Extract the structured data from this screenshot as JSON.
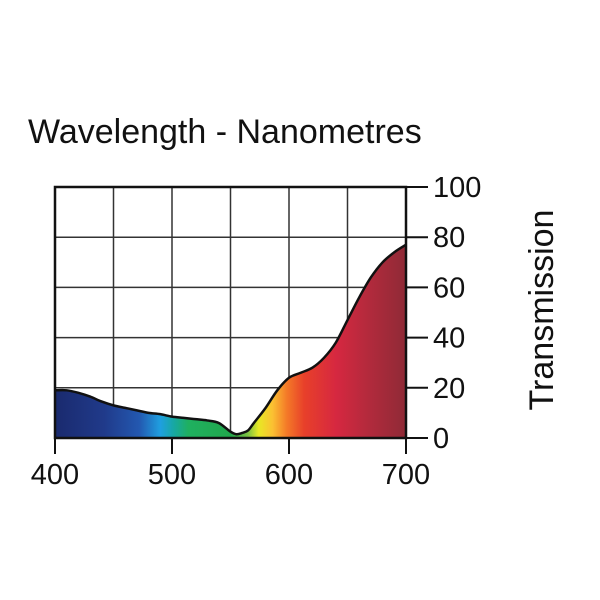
{
  "chart_data": {
    "type": "area",
    "title": "Wavelength - Nanometres",
    "xlabel": "",
    "ylabel": "Transmission",
    "xlim": [
      400,
      700
    ],
    "ylim": [
      0,
      100
    ],
    "x_ticks": [
      400,
      500,
      600,
      700
    ],
    "x_tick_labels": [
      "400",
      "500",
      "600",
      "700"
    ],
    "y_ticks": [
      0,
      20,
      40,
      60,
      80,
      100
    ],
    "y_tick_labels": [
      "0",
      "20",
      "40",
      "60",
      "80",
      "100"
    ],
    "y_axis_side": "right",
    "grid": true,
    "fill": "visible-spectrum-gradient",
    "series": [
      {
        "name": "Transmission",
        "x": [
          400,
          410,
          420,
          430,
          440,
          450,
          460,
          470,
          480,
          490,
          500,
          510,
          520,
          530,
          540,
          550,
          555,
          560,
          565,
          570,
          580,
          590,
          600,
          610,
          620,
          630,
          640,
          650,
          660,
          670,
          680,
          690,
          700
        ],
        "y": [
          19,
          19,
          18,
          16.5,
          14.5,
          13,
          12,
          11,
          10,
          9.5,
          8.5,
          8,
          7.5,
          7,
          6,
          2.5,
          1.5,
          2,
          3,
          6,
          12,
          19,
          24,
          26,
          28,
          32,
          38,
          47,
          56,
          64,
          70,
          74,
          77
        ]
      }
    ],
    "colors": {
      "grid": "#333333",
      "frame": "#111111",
      "curve": "#111111"
    }
  }
}
